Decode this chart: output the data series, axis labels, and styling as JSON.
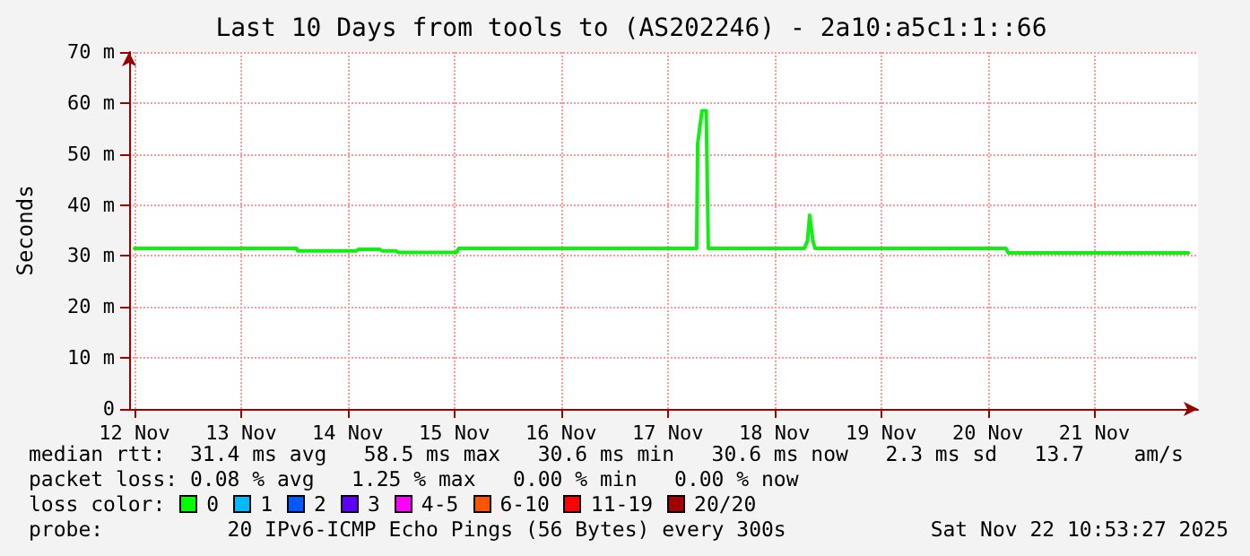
{
  "chart_data": {
    "type": "line",
    "title": "Last 10 Days from tools to (AS202246) - 2a10:a5c1:1::66",
    "ylabel": "Seconds",
    "x": [
      "2025-11-12T00:00",
      "2025-11-13T12:29",
      "2025-11-13T12:43",
      "2025-11-14T01:55",
      "2025-11-14T02:24",
      "2025-11-14T07:12",
      "2025-11-14T07:41",
      "2025-11-14T10:48",
      "2025-11-14T11:17",
      "2025-11-15T00:29",
      "2025-11-15T00:58",
      "2025-11-17T06:29",
      "2025-11-17T06:43",
      "2025-11-17T07:41",
      "2025-11-17T08:38",
      "2025-11-17T09:07",
      "2025-11-18T06:43",
      "2025-11-18T07:26",
      "2025-11-18T07:55",
      "2025-11-18T08:38",
      "2025-11-18T09:07",
      "2025-11-20T04:05",
      "2025-11-20T04:34",
      "2025-11-21T21:07"
    ],
    "series": [
      {
        "color": "#11ee11",
        "values": [
          31.5,
          31.5,
          31.0,
          31.0,
          31.3,
          31.3,
          31.0,
          31.0,
          30.7,
          30.7,
          31.5,
          31.5,
          52,
          58.5,
          58.5,
          31.5,
          31.5,
          33,
          38,
          33,
          31.5,
          31.5,
          30.6,
          30.6
        ]
      }
    ],
    "xlim": [
      "2025-11-11T22:48",
      "2025-11-21T23:17"
    ],
    "xticks": [
      {
        "value": "2025-11-12T00:00",
        "label": "12 Nov"
      },
      {
        "value": "2025-11-13T00:00",
        "label": "13 Nov"
      },
      {
        "value": "2025-11-14T00:00",
        "label": "14 Nov"
      },
      {
        "value": "2025-11-15T00:00",
        "label": "15 Nov"
      },
      {
        "value": "2025-11-16T00:00",
        "label": "16 Nov"
      },
      {
        "value": "2025-11-17T00:00",
        "label": "17 Nov"
      },
      {
        "value": "2025-11-18T00:00",
        "label": "18 Nov"
      },
      {
        "value": "2025-11-19T00:00",
        "label": "19 Nov"
      },
      {
        "value": "2025-11-20T00:00",
        "label": "20 Nov"
      },
      {
        "value": "2025-11-21T00:00",
        "label": "21 Nov"
      }
    ],
    "ylim": [
      0,
      70
    ],
    "yticks": [
      0,
      {
        "value": 10,
        "label": "10 m"
      },
      {
        "value": 20,
        "label": "20 m"
      },
      {
        "value": 30,
        "label": "30 m"
      },
      {
        "value": 40,
        "label": "40 m"
      },
      {
        "value": 50,
        "label": "50 m"
      },
      {
        "value": 60,
        "label": "60 m"
      },
      {
        "value": 70,
        "label": "70 m"
      }
    ],
    "grid": true,
    "marker": "none",
    "line_style": "solid",
    "annotations": [
      "median rtt:  31.4 ms avg   58.5 ms max   30.6 ms min   30.6 ms now   2.3 ms sd   13.7    am/s",
      "packet loss: 0.08 % avg   1.25 % max   0.00 % min   0.00 % now",
      "loss color:",
      "0",
      "1",
      "2",
      "3",
      "4-5",
      "6-10",
      "11-19",
      "20/20",
      "probe:          20 IPv6-ICMP Echo Pings (56 Bytes) every 300s",
      "Sat Nov 22 10:53:27 2025"
    ]
  }
}
